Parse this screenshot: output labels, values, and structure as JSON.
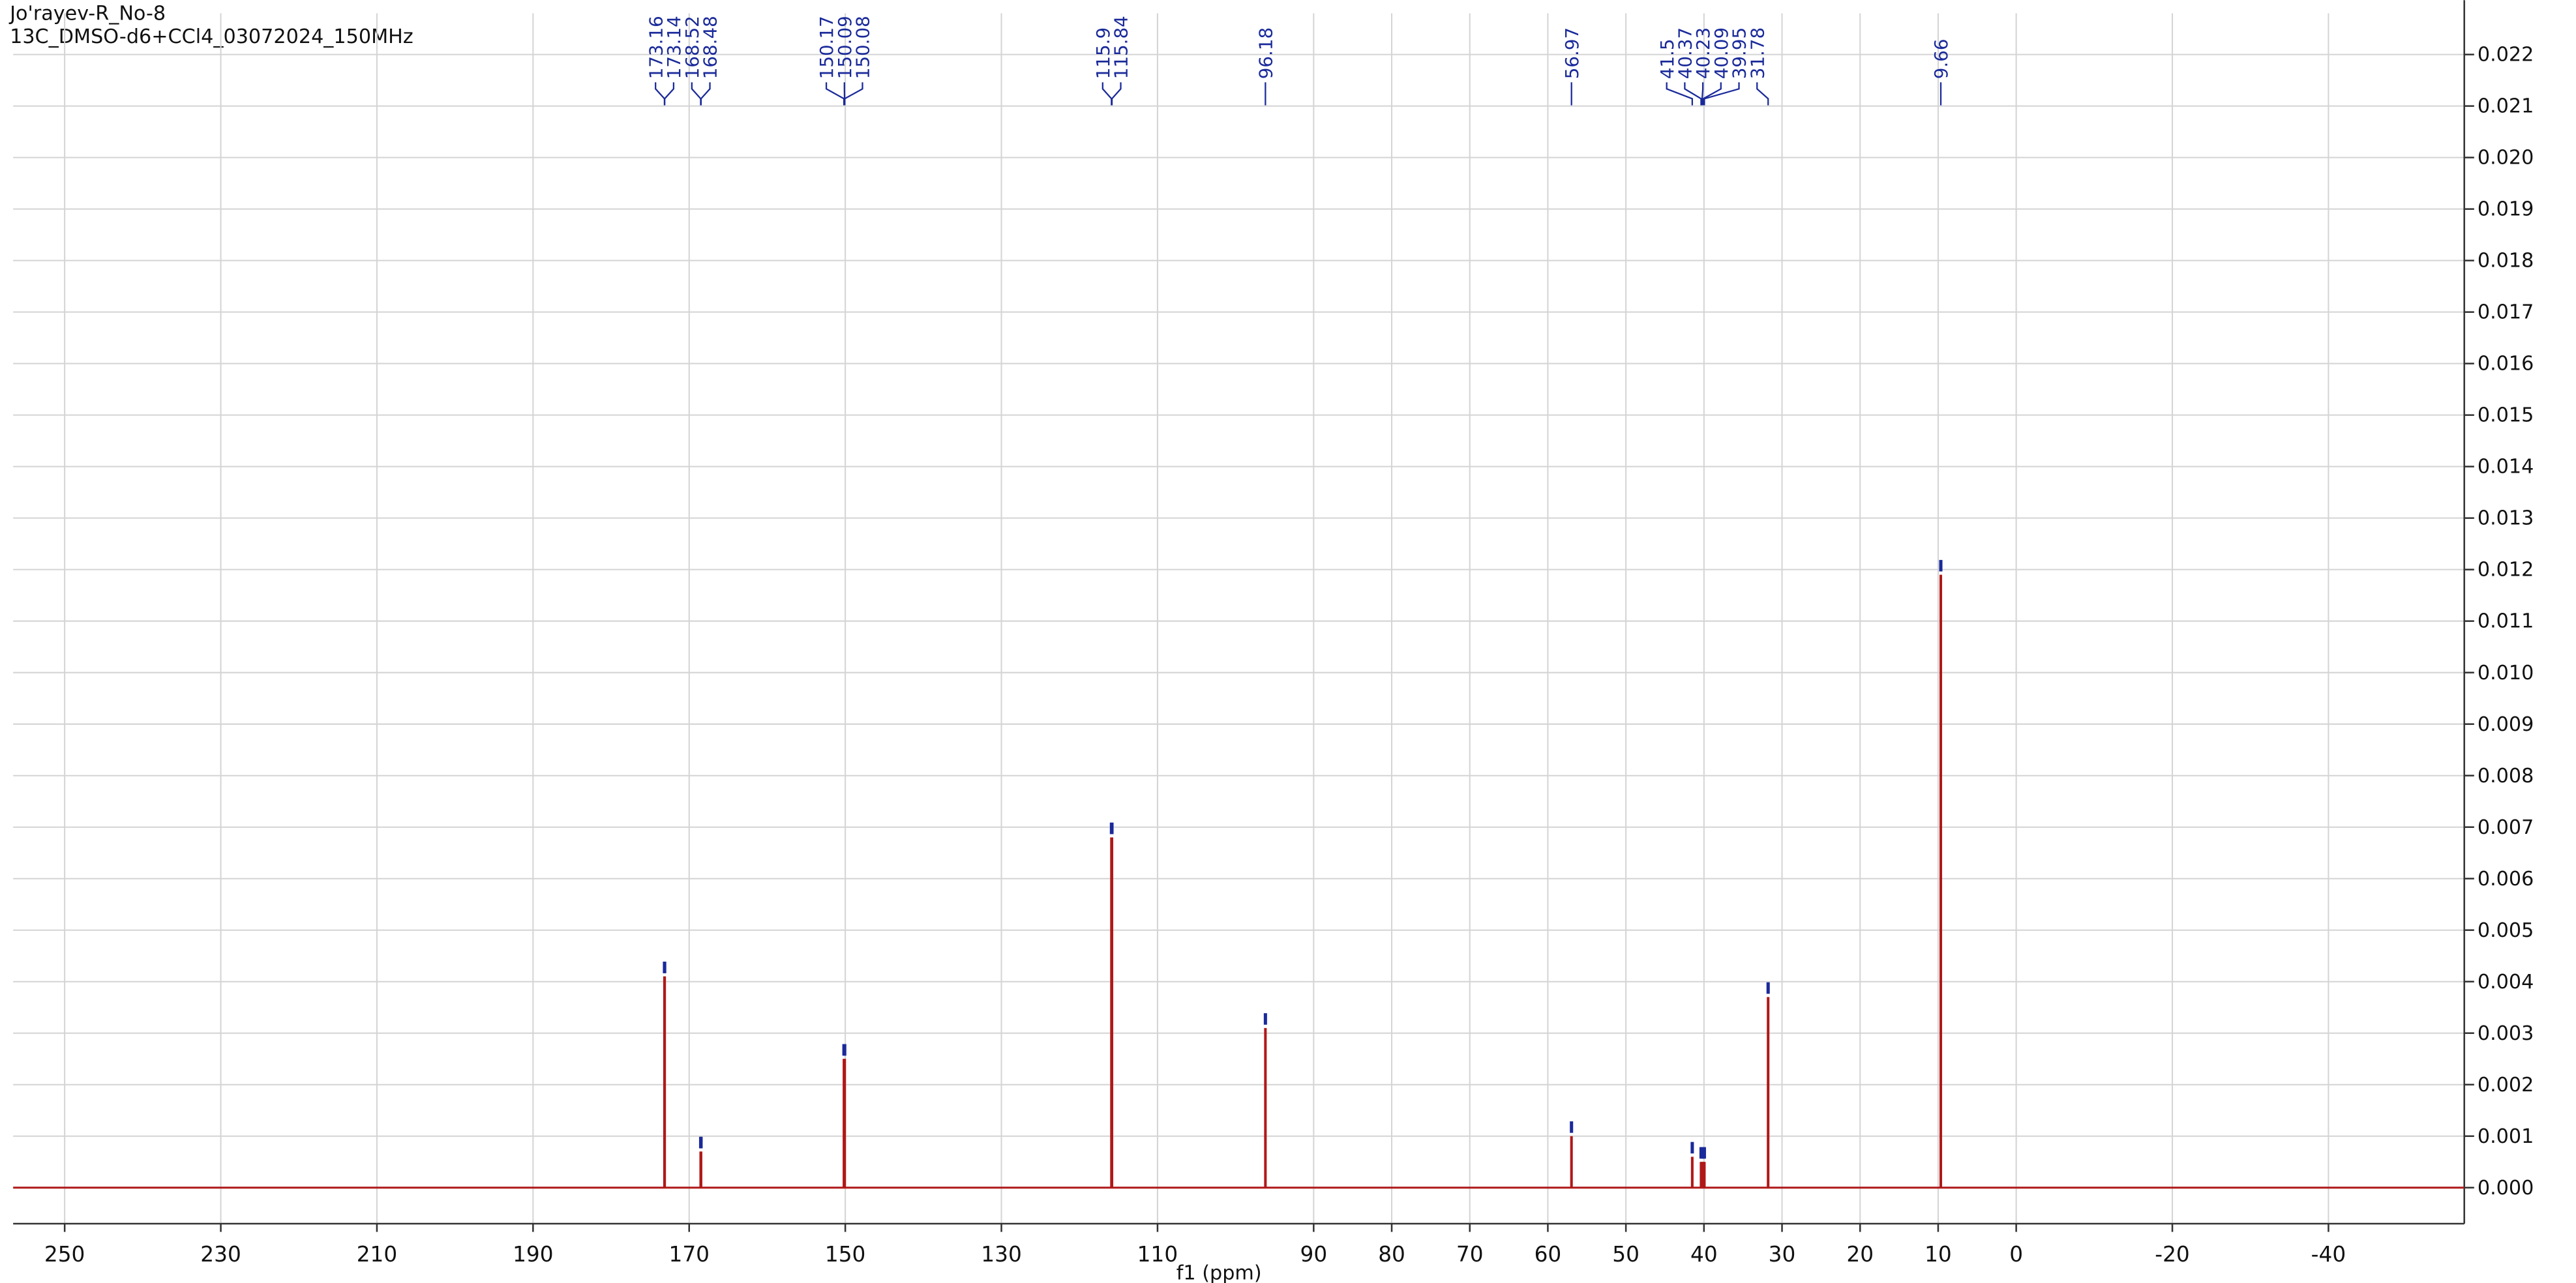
{
  "chart_data": {
    "type": "spectrum",
    "title": "Jo'rayev-R_No-8",
    "subtitle": "13C_DMSO-d6+CCl4_03072024_150MHz",
    "x_label": "f1 (ppm)",
    "x": [
      173.16,
      173.14,
      168.52,
      168.48,
      150.17,
      150.09,
      150.08,
      115.9,
      115.84,
      96.18,
      56.97,
      41.5,
      40.37,
      40.23,
      40.09,
      39.95,
      31.78,
      9.66
    ],
    "values": [
      0.0041,
      0.0041,
      0.0007,
      0.0007,
      0.0025,
      0.0025,
      0.0025,
      0.0068,
      0.0068,
      0.0031,
      0.001,
      0.0006,
      0.0005,
      0.0005,
      0.0005,
      0.0005,
      0.0037,
      0.0119
    ],
    "color": "#b01818",
    "marker_color": "#1a2a9a",
    "xlim": [
      256.6,
      -57.4
    ],
    "xticks": [
      250,
      230,
      210,
      190,
      170,
      150,
      130,
      110,
      90,
      80,
      70,
      60,
      50,
      40,
      30,
      20,
      10,
      0,
      -20,
      -40
    ],
    "ylim": [
      -0.0007,
      0.0228
    ],
    "yticks": [
      {
        "value": 0,
        "label": "0.000"
      },
      {
        "value": 0.001,
        "label": "0.001"
      },
      {
        "value": 0.002,
        "label": "0.002"
      },
      {
        "value": 0.003,
        "label": "0.003"
      },
      {
        "value": 0.004,
        "label": "0.004"
      },
      {
        "value": 0.005,
        "label": "0.005"
      },
      {
        "value": 0.006,
        "label": "0.006"
      },
      {
        "value": 0.007,
        "label": "0.007"
      },
      {
        "value": 0.008,
        "label": "0.008"
      },
      {
        "value": 0.009,
        "label": "0.009"
      },
      {
        "value": 0.01,
        "label": "0.010"
      },
      {
        "value": 0.011,
        "label": "0.011"
      },
      {
        "value": 0.012,
        "label": "0.012"
      },
      {
        "value": 0.013,
        "label": "0.013"
      },
      {
        "value": 0.014,
        "label": "0.014"
      },
      {
        "value": 0.015,
        "label": "0.015"
      },
      {
        "value": 0.016,
        "label": "0.016"
      },
      {
        "value": 0.017,
        "label": "0.017"
      },
      {
        "value": 0.018,
        "label": "0.018"
      },
      {
        "value": 0.019,
        "label": "0.019"
      },
      {
        "value": 0.02,
        "label": "0.020"
      },
      {
        "value": 0.021,
        "label": "0.021"
      },
      {
        "value": 0.022,
        "label": "0.022"
      }
    ],
    "grid": true
  }
}
